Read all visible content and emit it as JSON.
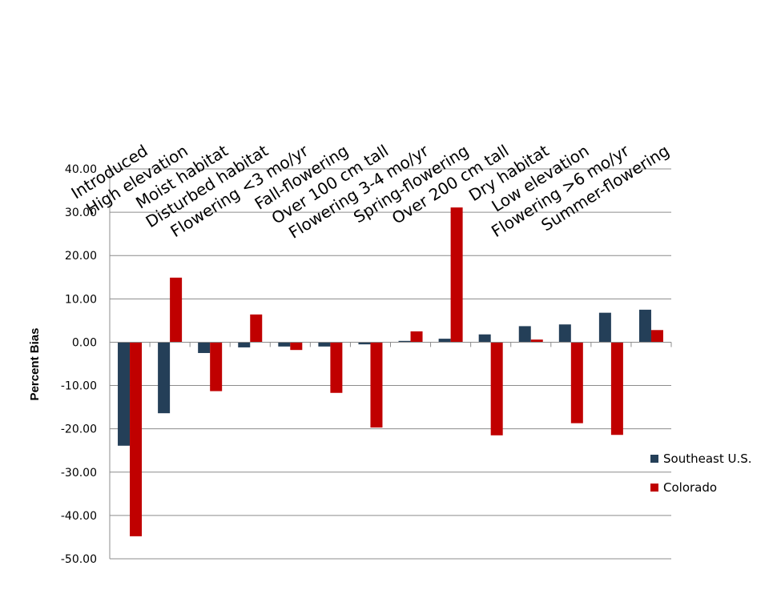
{
  "chart_data": {
    "type": "bar",
    "title": "",
    "xlabel": "",
    "ylabel": "Percent Bias",
    "ylim": [
      -50,
      40
    ],
    "yticks": [
      "40.00",
      "30.00",
      "20.00",
      "10.00",
      "0.00",
      "-10.00",
      "-20.00",
      "-30.00",
      "-40.00",
      "-50.00"
    ],
    "grid": true,
    "legend_position": "right",
    "categories": [
      "Introduced",
      "High elevation",
      "Moist habitat",
      "Disturbed habitat",
      "Flowering <3 mo/yr",
      "Fall-flowering",
      "Over 100 cm tall",
      "Flowering 3-4 mo/yr",
      "Spring-flowering",
      "Over 200 cm tall",
      "Dry habitat",
      "Low elevation",
      "Flowering >6 mo/yr",
      "Summer-flowering"
    ],
    "series": [
      {
        "name": "Southeast U.S.",
        "color": "#243F58",
        "values": [
          -23.9,
          -16.4,
          -2.5,
          -1.2,
          -1.0,
          -1.0,
          -0.5,
          0.3,
          0.8,
          1.8,
          3.7,
          4.1,
          6.8,
          7.5
        ]
      },
      {
        "name": "Colorado",
        "color": "#C00000",
        "values": [
          -44.8,
          14.9,
          -11.3,
          6.4,
          -1.8,
          -11.7,
          -19.7,
          2.5,
          31.1,
          -21.5,
          0.6,
          -18.7,
          -21.4,
          2.8
        ]
      }
    ]
  }
}
